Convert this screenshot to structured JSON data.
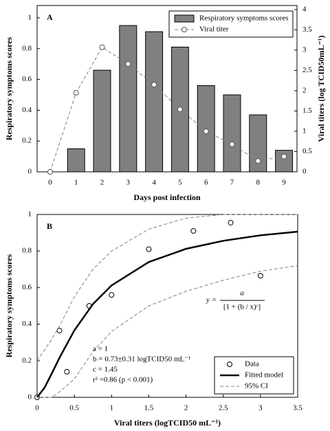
{
  "chart_data": [
    {
      "type": "bar",
      "label": "A",
      "categories": [
        "0",
        "1",
        "2",
        "3",
        "4",
        "5",
        "6",
        "7",
        "8",
        "9"
      ],
      "xlabel": "Days post infection",
      "ylabel": "Respiratory symptoms scores",
      "y2label": "Viral titers (log TCID50mL⁻¹)",
      "ylim": [
        0,
        1.08
      ],
      "yticks": [
        0,
        0.2,
        0.4,
        0.6,
        0.8,
        1
      ],
      "y2lim": [
        0,
        4.1
      ],
      "y2ticks": [
        0,
        0.5,
        1,
        1.5,
        2,
        2.5,
        3,
        3.5,
        4
      ],
      "legend": "upper right",
      "series": [
        {
          "name": "Respiratory symptoms scores",
          "color": "#808080",
          "style": "bar",
          "values": [
            0,
            0.15,
            0.66,
            0.95,
            0.91,
            0.81,
            0.56,
            0.5,
            0.37,
            0.14
          ]
        },
        {
          "name": "Viral titer",
          "color": "#808080",
          "style": "dashed-markers",
          "axis": "y2",
          "values": [
            0,
            1.95,
            3.07,
            2.66,
            2.15,
            1.54,
            1.0,
            0.68,
            0.27,
            0.38
          ]
        }
      ]
    },
    {
      "type": "scatter",
      "label": "B",
      "xlabel": "Viral titers (logTCID50 mL⁻¹)",
      "ylabel": "Respiratory symptoms scores",
      "xlim": [
        0,
        3.5
      ],
      "xticks": [
        0,
        0.5,
        1,
        1.5,
        2,
        2.5,
        3,
        3.5
      ],
      "ylim": [
        0,
        1
      ],
      "yticks": [
        0,
        0.2,
        0.4,
        0.6,
        0.8,
        1
      ],
      "legend": "lower right",
      "formula": [
        "y =",
        "a",
        "[1 + (b / x)ᶜ]"
      ],
      "annotations": [
        "a = 1",
        "b = 0.73±0.31 logTCID50 mL⁻¹",
        "c = 1.45",
        "r² =0.86 (p < 0.001)"
      ],
      "series": [
        {
          "name": "Data",
          "color": "#000000",
          "style": "markers",
          "x": [
            0,
            0.3,
            0.4,
            0.7,
            1.0,
            1.5,
            2.1,
            2.6,
            3.0
          ],
          "values": [
            0,
            0.365,
            0.14,
            0.5,
            0.56,
            0.81,
            0.91,
            0.955,
            0.665
          ]
        },
        {
          "name": "Fitted model",
          "color": "#000000",
          "style": "solid",
          "x": [
            0,
            0.1,
            0.2,
            0.3,
            0.5,
            0.75,
            1,
            1.5,
            2,
            2.5,
            3,
            3.5
          ],
          "values": [
            0,
            0.053,
            0.133,
            0.216,
            0.366,
            0.51,
            0.612,
            0.74,
            0.812,
            0.856,
            0.886,
            0.906
          ]
        },
        {
          "name": "95% CI",
          "color": "#808080",
          "style": "dashed",
          "x": [
            0,
            0.1,
            0.2,
            0.3,
            0.5,
            0.75,
            1,
            1.5,
            2,
            2.5,
            3,
            3.5
          ],
          "values": [
            0.2,
            0.26,
            0.32,
            0.39,
            0.55,
            0.7,
            0.8,
            0.92,
            0.98,
            1,
            1,
            1
          ]
        },
        {
          "color": "#808080",
          "style": "dashed",
          "x": [
            0,
            0.1,
            0.2,
            0.3,
            0.5,
            0.75,
            1,
            1.5,
            2,
            2.5,
            3,
            3.5
          ],
          "values": [
            0,
            0,
            0,
            0.03,
            0.1,
            0.25,
            0.36,
            0.5,
            0.58,
            0.64,
            0.69,
            0.72
          ]
        }
      ]
    }
  ]
}
